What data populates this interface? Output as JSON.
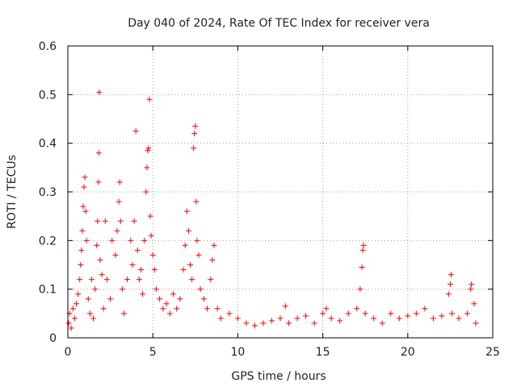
{
  "chart_data": {
    "type": "scatter",
    "title": "Day 040 of 2024, Rate Of TEC Index for receiver vera",
    "xlabel": "GPS time / hours",
    "ylabel": "ROTI / TECUs",
    "xlim": [
      0,
      25
    ],
    "ylim": [
      0,
      0.6
    ],
    "xticks": [
      0,
      5,
      10,
      15,
      20,
      25
    ],
    "yticks": [
      0,
      0.1,
      0.2,
      0.3,
      0.4,
      0.5,
      0.6
    ],
    "xtick_labels": [
      "0",
      "5",
      "10",
      "15",
      "20",
      "25"
    ],
    "ytick_labels": [
      "0",
      "0.1",
      "0.2",
      "0.3",
      "0.4",
      "0.5",
      "0.6"
    ],
    "grid": true,
    "marker": "+",
    "color": "#ff0000",
    "series": [
      {
        "name": "ROTI",
        "points": [
          [
            0.05,
            0.03
          ],
          [
            0.1,
            0.05
          ],
          [
            0.2,
            0.02
          ],
          [
            0.3,
            0.06
          ],
          [
            0.4,
            0.04
          ],
          [
            0.5,
            0.07
          ],
          [
            0.6,
            0.09
          ],
          [
            0.7,
            0.12
          ],
          [
            0.75,
            0.15
          ],
          [
            0.8,
            0.18
          ],
          [
            0.85,
            0.22
          ],
          [
            0.9,
            0.27
          ],
          [
            0.95,
            0.31
          ],
          [
            1.0,
            0.33
          ],
          [
            1.05,
            0.26
          ],
          [
            1.1,
            0.2
          ],
          [
            1.2,
            0.08
          ],
          [
            1.3,
            0.05
          ],
          [
            1.4,
            0.12
          ],
          [
            1.5,
            0.04
          ],
          [
            1.6,
            0.1
          ],
          [
            1.7,
            0.19
          ],
          [
            1.75,
            0.24
          ],
          [
            1.8,
            0.32
          ],
          [
            1.82,
            0.38
          ],
          [
            1.85,
            0.505
          ],
          [
            1.9,
            0.16
          ],
          [
            2.0,
            0.13
          ],
          [
            2.1,
            0.06
          ],
          [
            2.2,
            0.24
          ],
          [
            2.3,
            0.12
          ],
          [
            2.5,
            0.08
          ],
          [
            2.6,
            0.2
          ],
          [
            2.8,
            0.17
          ],
          [
            2.9,
            0.22
          ],
          [
            3.0,
            0.28
          ],
          [
            3.05,
            0.32
          ],
          [
            3.1,
            0.24
          ],
          [
            3.2,
            0.1
          ],
          [
            3.3,
            0.05
          ],
          [
            3.5,
            0.12
          ],
          [
            3.7,
            0.2
          ],
          [
            3.8,
            0.15
          ],
          [
            3.9,
            0.24
          ],
          [
            4.0,
            0.425
          ],
          [
            4.1,
            0.18
          ],
          [
            4.2,
            0.12
          ],
          [
            4.3,
            0.14
          ],
          [
            4.4,
            0.09
          ],
          [
            4.5,
            0.2
          ],
          [
            4.6,
            0.3
          ],
          [
            4.65,
            0.35
          ],
          [
            4.7,
            0.385
          ],
          [
            4.75,
            0.39
          ],
          [
            4.8,
            0.49
          ],
          [
            4.85,
            0.25
          ],
          [
            4.9,
            0.21
          ],
          [
            5.0,
            0.17
          ],
          [
            5.1,
            0.14
          ],
          [
            5.2,
            0.1
          ],
          [
            5.4,
            0.08
          ],
          [
            5.6,
            0.06
          ],
          [
            5.8,
            0.07
          ],
          [
            6.0,
            0.05
          ],
          [
            6.2,
            0.09
          ],
          [
            6.4,
            0.06
          ],
          [
            6.6,
            0.08
          ],
          [
            6.8,
            0.14
          ],
          [
            6.9,
            0.19
          ],
          [
            7.0,
            0.26
          ],
          [
            7.1,
            0.22
          ],
          [
            7.2,
            0.15
          ],
          [
            7.3,
            0.12
          ],
          [
            7.4,
            0.39
          ],
          [
            7.45,
            0.42
          ],
          [
            7.5,
            0.435
          ],
          [
            7.55,
            0.28
          ],
          [
            7.6,
            0.2
          ],
          [
            7.7,
            0.17
          ],
          [
            7.8,
            0.1
          ],
          [
            8.0,
            0.08
          ],
          [
            8.2,
            0.06
          ],
          [
            8.4,
            0.12
          ],
          [
            8.5,
            0.16
          ],
          [
            8.6,
            0.19
          ],
          [
            8.8,
            0.06
          ],
          [
            9.0,
            0.04
          ],
          [
            9.5,
            0.05
          ],
          [
            10.0,
            0.04
          ],
          [
            10.5,
            0.03
          ],
          [
            11.0,
            0.025
          ],
          [
            11.5,
            0.03
          ],
          [
            12.0,
            0.035
          ],
          [
            12.5,
            0.04
          ],
          [
            12.8,
            0.065
          ],
          [
            13.0,
            0.03
          ],
          [
            13.5,
            0.04
          ],
          [
            14.0,
            0.045
          ],
          [
            14.5,
            0.03
          ],
          [
            15.0,
            0.05
          ],
          [
            15.2,
            0.06
          ],
          [
            15.5,
            0.04
          ],
          [
            16.0,
            0.035
          ],
          [
            16.5,
            0.05
          ],
          [
            17.0,
            0.06
          ],
          [
            17.2,
            0.1
          ],
          [
            17.3,
            0.145
          ],
          [
            17.35,
            0.18
          ],
          [
            17.4,
            0.19
          ],
          [
            17.5,
            0.05
          ],
          [
            18.0,
            0.04
          ],
          [
            18.5,
            0.03
          ],
          [
            19.0,
            0.05
          ],
          [
            19.5,
            0.04
          ],
          [
            20.0,
            0.045
          ],
          [
            20.5,
            0.05
          ],
          [
            21.0,
            0.06
          ],
          [
            21.5,
            0.04
          ],
          [
            22.0,
            0.045
          ],
          [
            22.4,
            0.09
          ],
          [
            22.5,
            0.11
          ],
          [
            22.55,
            0.13
          ],
          [
            22.6,
            0.05
          ],
          [
            23.0,
            0.04
          ],
          [
            23.5,
            0.05
          ],
          [
            23.7,
            0.1
          ],
          [
            23.75,
            0.11
          ],
          [
            23.9,
            0.07
          ],
          [
            24.0,
            0.03
          ]
        ]
      }
    ]
  }
}
